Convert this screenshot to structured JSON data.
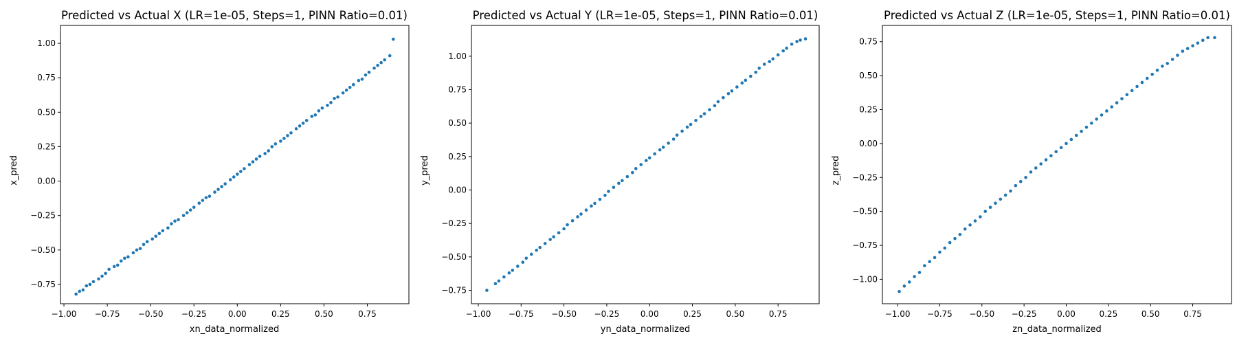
{
  "chart_data": [
    {
      "type": "scatter",
      "title": "Predicted vs Actual X (LR=1e-05, Steps=1, PINN Ratio=0.01)",
      "xlabel": "xn_data_normalized",
      "ylabel": "x_pred",
      "xlim": [
        -1.02,
        0.99
      ],
      "ylim": [
        -0.89,
        1.13
      ],
      "xticks": [
        -1.0,
        -0.75,
        -0.5,
        -0.25,
        0.0,
        0.25,
        0.5,
        0.75
      ],
      "xtick_labels": [
        "−1.00",
        "−0.75",
        "−0.50",
        "−0.25",
        "0.00",
        "0.25",
        "0.50",
        "0.75"
      ],
      "yticks": [
        -0.75,
        -0.5,
        -0.25,
        0.0,
        0.25,
        0.5,
        0.75,
        1.0
      ],
      "ytick_labels": [
        "−0.75",
        "−0.50",
        "−0.25",
        "0.00",
        "0.25",
        "0.50",
        "0.75",
        "1.00"
      ],
      "grid": false,
      "marker_color": "#1f77b4",
      "series": [
        {
          "x": [
            -0.93,
            -0.91,
            -0.89,
            -0.87,
            -0.85,
            -0.83,
            -0.8,
            -0.78,
            -0.76,
            -0.74,
            -0.71,
            -0.69,
            -0.67,
            -0.65,
            -0.63,
            -0.6,
            -0.58,
            -0.56,
            -0.54,
            -0.52,
            -0.49,
            -0.47,
            -0.45,
            -0.43,
            -0.4,
            -0.38,
            -0.36,
            -0.34,
            -0.31,
            -0.29,
            -0.27,
            -0.25,
            -0.22,
            -0.2,
            -0.18,
            -0.16,
            -0.13,
            -0.11,
            -0.09,
            -0.07,
            -0.04,
            -0.02,
            0.0,
            0.02,
            0.04,
            0.07,
            0.09,
            0.11,
            0.13,
            0.16,
            0.18,
            0.2,
            0.22,
            0.25,
            0.27,
            0.29,
            0.31,
            0.34,
            0.36,
            0.38,
            0.4,
            0.43,
            0.45,
            0.47,
            0.49,
            0.52,
            0.54,
            0.56,
            0.58,
            0.61,
            0.63,
            0.65,
            0.67,
            0.7,
            0.72,
            0.74,
            0.76,
            0.79,
            0.81,
            0.83,
            0.85,
            0.88,
            0.9
          ],
          "y": [
            -0.82,
            -0.8,
            -0.79,
            -0.76,
            -0.75,
            -0.73,
            -0.71,
            -0.69,
            -0.67,
            -0.64,
            -0.62,
            -0.61,
            -0.58,
            -0.56,
            -0.55,
            -0.52,
            -0.5,
            -0.49,
            -0.46,
            -0.44,
            -0.42,
            -0.4,
            -0.38,
            -0.36,
            -0.34,
            -0.31,
            -0.29,
            -0.28,
            -0.25,
            -0.23,
            -0.21,
            -0.19,
            -0.16,
            -0.14,
            -0.12,
            -0.11,
            -0.08,
            -0.06,
            -0.04,
            -0.02,
            0.01,
            0.03,
            0.05,
            0.07,
            0.09,
            0.12,
            0.14,
            0.16,
            0.18,
            0.2,
            0.22,
            0.25,
            0.27,
            0.29,
            0.31,
            0.33,
            0.35,
            0.38,
            0.4,
            0.42,
            0.44,
            0.47,
            0.48,
            0.51,
            0.53,
            0.55,
            0.57,
            0.6,
            0.61,
            0.64,
            0.66,
            0.68,
            0.7,
            0.73,
            0.74,
            0.77,
            0.79,
            0.82,
            0.84,
            0.86,
            0.88,
            0.91,
            1.03
          ]
        }
      ]
    },
    {
      "type": "scatter",
      "title": "Predicted vs Actual Y (LR=1e-05, Steps=1, PINN Ratio=0.01)",
      "xlabel": "yn_data_normalized",
      "ylabel": "y_pred",
      "xlim": [
        -1.04,
        0.99
      ],
      "ylim": [
        -0.85,
        1.23
      ],
      "xticks": [
        -1.0,
        -0.75,
        -0.5,
        -0.25,
        0.0,
        0.25,
        0.5,
        0.75
      ],
      "xtick_labels": [
        "−1.00",
        "−0.75",
        "−0.50",
        "−0.25",
        "0.00",
        "0.25",
        "0.50",
        "0.75"
      ],
      "yticks": [
        -0.75,
        -0.5,
        -0.25,
        0.0,
        0.25,
        0.5,
        0.75,
        1.0
      ],
      "ytick_labels": [
        "−0.75",
        "−0.50",
        "−0.25",
        "0.00",
        "0.25",
        "0.50",
        "0.75",
        "1.00"
      ],
      "grid": false,
      "marker_color": "#1f77b4",
      "series": [
        {
          "x": [
            -0.95,
            -0.9,
            -0.88,
            -0.85,
            -0.82,
            -0.8,
            -0.77,
            -0.74,
            -0.72,
            -0.69,
            -0.66,
            -0.64,
            -0.61,
            -0.58,
            -0.56,
            -0.53,
            -0.5,
            -0.48,
            -0.45,
            -0.42,
            -0.4,
            -0.37,
            -0.34,
            -0.32,
            -0.29,
            -0.26,
            -0.24,
            -0.21,
            -0.18,
            -0.16,
            -0.13,
            -0.1,
            -0.08,
            -0.05,
            -0.02,
            0.0,
            0.03,
            0.06,
            0.08,
            0.11,
            0.14,
            0.16,
            0.19,
            0.22,
            0.24,
            0.27,
            0.3,
            0.32,
            0.35,
            0.38,
            0.4,
            0.43,
            0.46,
            0.48,
            0.51,
            0.54,
            0.56,
            0.59,
            0.62,
            0.64,
            0.67,
            0.7,
            0.72,
            0.75,
            0.78,
            0.8,
            0.83,
            0.86,
            0.88,
            0.91
          ],
          "y": [
            -0.75,
            -0.7,
            -0.68,
            -0.65,
            -0.62,
            -0.6,
            -0.57,
            -0.54,
            -0.51,
            -0.48,
            -0.45,
            -0.43,
            -0.4,
            -0.37,
            -0.35,
            -0.32,
            -0.29,
            -0.26,
            -0.23,
            -0.2,
            -0.18,
            -0.15,
            -0.12,
            -0.1,
            -0.07,
            -0.04,
            -0.01,
            0.02,
            0.05,
            0.07,
            0.1,
            0.13,
            0.16,
            0.19,
            0.22,
            0.24,
            0.27,
            0.3,
            0.32,
            0.35,
            0.38,
            0.41,
            0.44,
            0.47,
            0.49,
            0.52,
            0.55,
            0.57,
            0.6,
            0.63,
            0.66,
            0.69,
            0.72,
            0.74,
            0.77,
            0.8,
            0.82,
            0.85,
            0.88,
            0.91,
            0.94,
            0.96,
            0.98,
            1.01,
            1.04,
            1.06,
            1.09,
            1.11,
            1.12,
            1.13
          ]
        }
      ]
    },
    {
      "type": "scatter",
      "title": "Predicted vs Actual Z (LR=1e-05, Steps=1, PINN Ratio=0.01)",
      "xlabel": "zn_data_normalized",
      "ylabel": "z_pred",
      "xlim": [
        -1.09,
        0.98
      ],
      "ylim": [
        -1.18,
        0.87
      ],
      "xticks": [
        -1.0,
        -0.75,
        -0.5,
        -0.25,
        0.0,
        0.25,
        0.5,
        0.75
      ],
      "xtick_labels": [
        "−1.00",
        "−0.75",
        "−0.50",
        "−0.25",
        "0.00",
        "0.25",
        "0.50",
        "0.75"
      ],
      "yticks": [
        -1.0,
        -0.75,
        -0.5,
        -0.25,
        0.0,
        0.25,
        0.5,
        0.75
      ],
      "ytick_labels": [
        "−1.00",
        "−0.75",
        "−0.50",
        "−0.25",
        "0.00",
        "0.25",
        "0.50",
        "0.75"
      ],
      "grid": false,
      "marker_color": "#1f77b4",
      "series": [
        {
          "x": [
            -0.99,
            -0.96,
            -0.93,
            -0.9,
            -0.87,
            -0.84,
            -0.81,
            -0.78,
            -0.75,
            -0.72,
            -0.69,
            -0.66,
            -0.63,
            -0.6,
            -0.57,
            -0.54,
            -0.51,
            -0.48,
            -0.45,
            -0.42,
            -0.39,
            -0.36,
            -0.33,
            -0.3,
            -0.27,
            -0.24,
            -0.21,
            -0.18,
            -0.15,
            -0.12,
            -0.09,
            -0.06,
            -0.03,
            0.0,
            0.03,
            0.06,
            0.09,
            0.12,
            0.15,
            0.18,
            0.21,
            0.24,
            0.27,
            0.3,
            0.33,
            0.36,
            0.39,
            0.42,
            0.45,
            0.48,
            0.51,
            0.54,
            0.57,
            0.6,
            0.63,
            0.66,
            0.69,
            0.72,
            0.75,
            0.78,
            0.81,
            0.84,
            0.88
          ],
          "y": [
            -1.09,
            -1.05,
            -1.02,
            -0.98,
            -0.95,
            -0.9,
            -0.87,
            -0.84,
            -0.8,
            -0.77,
            -0.73,
            -0.7,
            -0.67,
            -0.63,
            -0.6,
            -0.57,
            -0.54,
            -0.5,
            -0.47,
            -0.44,
            -0.41,
            -0.38,
            -0.35,
            -0.31,
            -0.28,
            -0.25,
            -0.21,
            -0.18,
            -0.15,
            -0.12,
            -0.09,
            -0.06,
            -0.03,
            0.0,
            0.03,
            0.06,
            0.09,
            0.12,
            0.15,
            0.18,
            0.21,
            0.24,
            0.27,
            0.3,
            0.33,
            0.36,
            0.39,
            0.42,
            0.45,
            0.48,
            0.51,
            0.54,
            0.57,
            0.59,
            0.62,
            0.65,
            0.68,
            0.7,
            0.72,
            0.74,
            0.76,
            0.78,
            0.78
          ]
        }
      ]
    }
  ]
}
